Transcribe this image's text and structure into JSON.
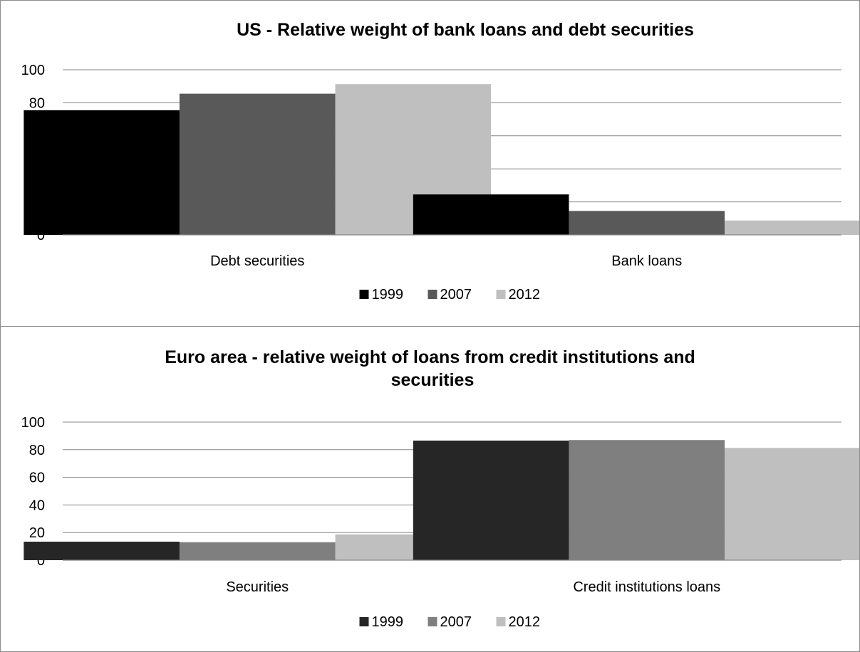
{
  "chart_data": [
    {
      "type": "bar",
      "title": "US - Relative weight of bank loans and debt securities",
      "categories": [
        "Debt securities",
        "Bank loans"
      ],
      "series": [
        {
          "name": "1999",
          "values": [
            75.5,
            24.5
          ],
          "color": "#000000"
        },
        {
          "name": "2007",
          "values": [
            85.5,
            14.5
          ],
          "color": "#595959"
        },
        {
          "name": "2012",
          "values": [
            91.3,
            8.7
          ],
          "color": "#bfbfbf"
        }
      ],
      "ylim": [
        0,
        100
      ],
      "yticks": [
        "0",
        "20",
        "40",
        "60",
        "80",
        "100"
      ],
      "grid": true,
      "legend_position": "bottom"
    },
    {
      "type": "bar",
      "title": "Euro area - relative weight of loans from credit institutions and securities",
      "categories": [
        "Securities",
        "Credit institutions loans"
      ],
      "series": [
        {
          "name": "1999",
          "values": [
            13.4,
            86.6
          ],
          "color": "#262626"
        },
        {
          "name": "2007",
          "values": [
            13.0,
            87.0
          ],
          "color": "#7f7f7f"
        },
        {
          "name": "2012",
          "values": [
            18.7,
            81.3
          ],
          "color": "#bfbfbf"
        }
      ],
      "ylim": [
        0,
        100
      ],
      "yticks": [
        "0",
        "20",
        "40",
        "60",
        "80",
        "100"
      ],
      "grid": true,
      "legend_position": "bottom"
    }
  ]
}
